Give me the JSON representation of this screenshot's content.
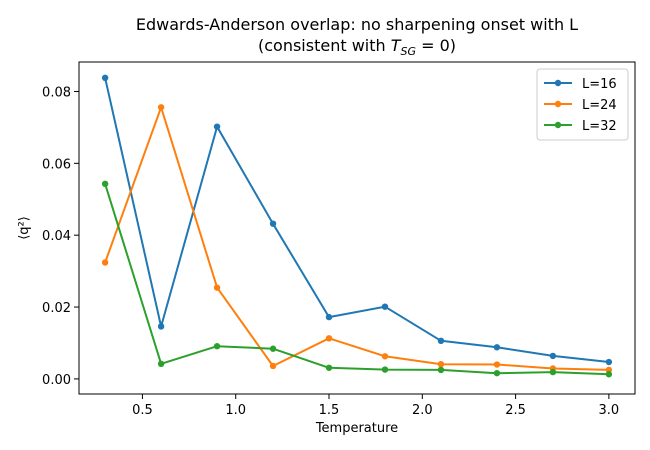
{
  "chart_data": {
    "type": "line",
    "title_line1": "Edwards-Anderson overlap: no sharpening onset with L",
    "title_line2_prefix": "(consistent with ",
    "title_line2_math": "T",
    "title_line2_sub": "SG",
    "title_line2_suffix": " = 0)",
    "xlabel": "Temperature",
    "ylabel": "⟨q²⟩",
    "xlim": [
      0.16,
      3.14
    ],
    "ylim": [
      -0.0042,
      0.0882
    ],
    "xticks": [
      0.5,
      1.0,
      1.5,
      2.0,
      2.5,
      3.0
    ],
    "xtick_labels": [
      "0.5",
      "1.0",
      "1.5",
      "2.0",
      "2.5",
      "3.0"
    ],
    "yticks": [
      0.0,
      0.02,
      0.04,
      0.06,
      0.08
    ],
    "ytick_labels": [
      "0.00",
      "0.02",
      "0.04",
      "0.06",
      "0.08"
    ],
    "x": [
      0.3,
      0.6,
      0.9,
      1.2,
      1.5,
      1.8,
      2.1,
      2.4,
      2.7,
      3.0
    ],
    "grid": false,
    "legend_position": "top-right",
    "series": [
      {
        "name": "L=16",
        "color": "#1f77b4",
        "values": [
          0.0838,
          0.0146,
          0.0702,
          0.0432,
          0.0172,
          0.0201,
          0.0106,
          0.0088,
          0.0064,
          0.0047
        ]
      },
      {
        "name": "L=24",
        "color": "#ff7f0e",
        "values": [
          0.0324,
          0.0756,
          0.0254,
          0.0036,
          0.0113,
          0.0063,
          0.0041,
          0.004,
          0.0029,
          0.0025
        ]
      },
      {
        "name": "L=32",
        "color": "#2ca02c",
        "values": [
          0.0543,
          0.0042,
          0.0091,
          0.0084,
          0.0031,
          0.0026,
          0.0025,
          0.0016,
          0.0019,
          0.0013
        ]
      }
    ]
  }
}
